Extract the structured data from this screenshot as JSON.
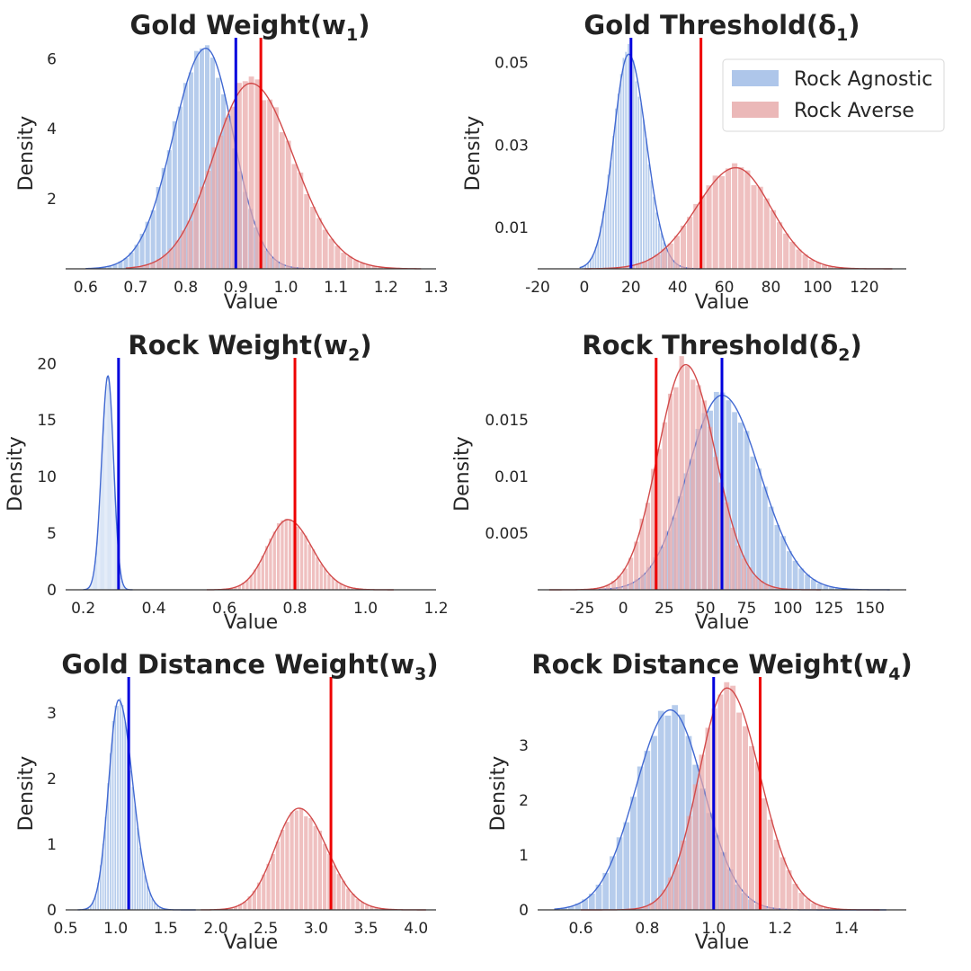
{
  "chart_data": [
    {
      "type": "histogram+kde",
      "title": "Gold Weight(w",
      "title_sub": "1",
      "xlabel": "Value",
      "ylabel": "Density",
      "xlim": [
        0.56,
        1.3
      ],
      "ylim": [
        0,
        6.6
      ],
      "xticks": [
        0.6,
        0.7,
        0.8,
        0.9,
        1.0,
        1.1,
        1.2,
        1.3
      ],
      "xtick_labels": [
        "0.6",
        "0.7",
        "0.8",
        "0.9",
        "1.0",
        "1.1",
        "1.2",
        "1.3"
      ],
      "yticks": [
        2,
        4,
        6
      ],
      "ytick_labels": [
        "2",
        "4",
        "6"
      ],
      "series": [
        {
          "name": "Rock Agnostic",
          "peak_x": 0.84,
          "peak_density": 6.3,
          "spread_left": 0.065,
          "spread_right": 0.055,
          "support": [
            0.6,
            1.12
          ]
        },
        {
          "name": "Rock Averse",
          "peak_x": 0.93,
          "peak_density": 5.3,
          "spread_left": 0.075,
          "spread_right": 0.085,
          "support": [
            0.68,
            1.27
          ]
        }
      ],
      "vlines": [
        {
          "series": "Rock Agnostic",
          "x": 0.9
        },
        {
          "series": "Rock Averse",
          "x": 0.95
        }
      ]
    },
    {
      "type": "histogram+kde",
      "title": "Gold Threshold(δ",
      "title_sub": "1",
      "xlabel": "Value",
      "ylabel": "Density",
      "xlim": [
        -20,
        138
      ],
      "ylim": [
        0,
        0.056
      ],
      "xticks": [
        -20,
        0,
        20,
        40,
        60,
        80,
        100,
        120
      ],
      "xtick_labels": [
        "-20",
        "0",
        "20",
        "40",
        "60",
        "80",
        "100",
        "120"
      ],
      "yticks": [
        0.01,
        0.03,
        0.05
      ],
      "ytick_labels": [
        "0.01",
        "0.03",
        "0.05"
      ],
      "series": [
        {
          "name": "Rock Agnostic",
          "peak_x": 19,
          "peak_density": 0.052,
          "spread_left": 6.5,
          "spread_right": 7.5,
          "support": [
            -2,
            50
          ]
        },
        {
          "name": "Rock Averse",
          "peak_x": 65,
          "peak_density": 0.0245,
          "spread_left": 17,
          "spread_right": 15,
          "support": [
            0,
            132
          ]
        }
      ],
      "vlines": [
        {
          "series": "Rock Agnostic",
          "x": 20
        },
        {
          "series": "Rock Averse",
          "x": 50
        }
      ]
    },
    {
      "type": "histogram+kde",
      "title": "Rock Weight(w",
      "title_sub": "2",
      "xlabel": "Value",
      "ylabel": "Density",
      "xlim": [
        0.15,
        1.2
      ],
      "ylim": [
        0,
        20.5
      ],
      "xticks": [
        0.2,
        0.4,
        0.6,
        0.8,
        1.0,
        1.2
      ],
      "xtick_labels": [
        "0.2",
        "0.4",
        "0.6",
        "0.8",
        "1.0",
        "1.2"
      ],
      "yticks": [
        0,
        5,
        10,
        15,
        20
      ],
      "ytick_labels": [
        "0",
        "5",
        "10",
        "15",
        "20"
      ],
      "series": [
        {
          "name": "Rock Agnostic",
          "peak_x": 0.27,
          "peak_density": 18.9,
          "spread_left": 0.018,
          "spread_right": 0.016,
          "support": [
            0.2,
            0.34
          ]
        },
        {
          "name": "Rock Averse",
          "peak_x": 0.78,
          "peak_density": 6.2,
          "spread_left": 0.058,
          "spread_right": 0.068,
          "support": [
            0.55,
            1.08
          ]
        }
      ],
      "vlines": [
        {
          "series": "Rock Agnostic",
          "x": 0.3
        },
        {
          "series": "Rock Averse",
          "x": 0.8
        }
      ]
    },
    {
      "type": "histogram+kde",
      "title": "Rock Threshold(δ",
      "title_sub": "2",
      "xlabel": "Value",
      "ylabel": "Density",
      "xlim": [
        -52,
        172
      ],
      "ylim": [
        0,
        0.0205
      ],
      "xticks": [
        -25,
        0,
        25,
        50,
        75,
        100,
        125,
        150
      ],
      "xtick_labels": [
        "-25",
        "0",
        "25",
        "50",
        "75",
        "100",
        "125",
        "150"
      ],
      "yticks": [
        0.005,
        0.01,
        0.015
      ],
      "ytick_labels": [
        "0.005",
        "0.01",
        "0.015"
      ],
      "series": [
        {
          "name": "Rock Agnostic",
          "peak_x": 60,
          "peak_density": 0.0172,
          "spread_left": 21,
          "spread_right": 23,
          "support": [
            -15,
            162
          ]
        },
        {
          "name": "Rock Averse",
          "peak_x": 38,
          "peak_density": 0.0199,
          "spread_left": 17,
          "spread_right": 18,
          "support": [
            -45,
            120
          ]
        }
      ],
      "vlines": [
        {
          "series": "Rock Agnostic",
          "x": 60
        },
        {
          "series": "Rock Averse",
          "x": 20
        }
      ]
    },
    {
      "type": "histogram+kde",
      "title": "Gold Distance Weight(w",
      "title_sub": "3",
      "xlabel": "Value",
      "ylabel": "Density",
      "xlim": [
        0.5,
        4.2
      ],
      "ylim": [
        0,
        3.55
      ],
      "xticks": [
        0.5,
        1.0,
        1.5,
        2.0,
        2.5,
        3.0,
        3.5,
        4.0
      ],
      "xtick_labels": [
        "0.5",
        "1.0",
        "1.5",
        "2.0",
        "2.5",
        "3.0",
        "3.5",
        "4.0"
      ],
      "yticks": [
        0,
        1,
        2,
        3
      ],
      "ytick_labels": [
        "0",
        "1",
        "2",
        "3"
      ],
      "series": [
        {
          "name": "Rock Agnostic",
          "peak_x": 1.03,
          "peak_density": 3.2,
          "spread_left": 0.1,
          "spread_right": 0.14,
          "support": [
            0.62,
            1.8
          ]
        },
        {
          "name": "Rock Averse",
          "peak_x": 2.83,
          "peak_density": 1.55,
          "spread_left": 0.24,
          "spread_right": 0.28,
          "support": [
            1.85,
            4.1
          ]
        }
      ],
      "vlines": [
        {
          "series": "Rock Agnostic",
          "x": 1.13
        },
        {
          "series": "Rock Averse",
          "x": 3.15
        }
      ]
    },
    {
      "type": "histogram+kde",
      "title": "Rock Distance Weight(w",
      "title_sub": "4",
      "xlabel": "Value",
      "ylabel": "Density",
      "xlim": [
        0.47,
        1.58
      ],
      "ylim": [
        0,
        4.25
      ],
      "xticks": [
        0.6,
        0.8,
        1.0,
        1.2,
        1.4
      ],
      "xtick_labels": [
        "0.6",
        "0.8",
        "1.0",
        "1.2",
        "1.4"
      ],
      "yticks": [
        0,
        1,
        2,
        3
      ],
      "ytick_labels": [
        "0",
        "1",
        "2",
        "3"
      ],
      "series": [
        {
          "name": "Rock Agnostic",
          "peak_x": 0.87,
          "peak_density": 3.65,
          "spread_left": 0.105,
          "spread_right": 0.1,
          "support": [
            0.52,
            1.52
          ]
        },
        {
          "name": "Rock Averse",
          "peak_x": 1.04,
          "peak_density": 4.05,
          "spread_left": 0.085,
          "spread_right": 0.1,
          "support": [
            0.6,
            1.5
          ]
        }
      ],
      "vlines": [
        {
          "series": "Rock Agnostic",
          "x": 1.0
        },
        {
          "series": "Rock Averse",
          "x": 1.14
        }
      ]
    }
  ],
  "legend": {
    "entries": [
      {
        "label": "Rock Agnostic",
        "color": "#aec6ea"
      },
      {
        "label": "Rock Averse",
        "color": "#ebb8b8"
      }
    ],
    "placement": "top-right of Gold Threshold panel"
  },
  "colors": {
    "agnostic_fill": "#aec6ea",
    "agnostic_line": "#4169d2",
    "averse_fill": "#e9a8a8",
    "averse_line": "#d24a4a",
    "agnostic_vline": "#0000dd",
    "averse_vline": "#ee0000"
  }
}
